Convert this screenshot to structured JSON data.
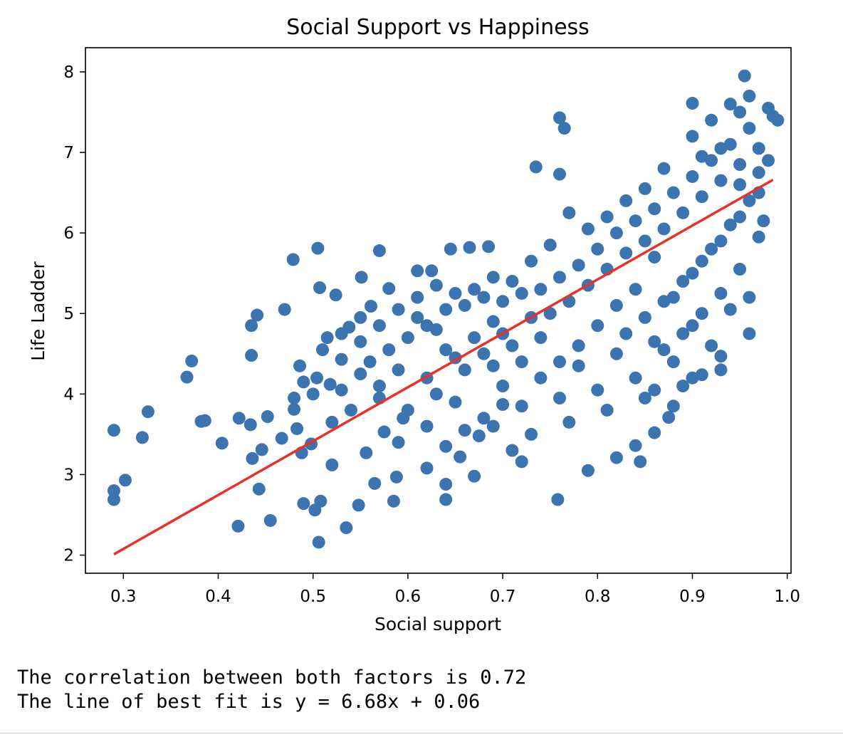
{
  "chart_data": {
    "type": "scatter",
    "title": "Social Support vs Happiness",
    "xlabel": "Social support",
    "ylabel": "Life Ladder",
    "xlim": [
      0.26,
      1.004
    ],
    "ylim": [
      1.775,
      8.3
    ],
    "x_ticks": [
      0.3,
      0.4,
      0.5,
      0.6,
      0.7,
      0.8,
      0.9,
      1.0
    ],
    "x_tick_labels": [
      "0.3",
      "0.4",
      "0.5",
      "0.6",
      "0.7",
      "0.8",
      "0.9",
      "1.0"
    ],
    "y_ticks": [
      2,
      3,
      4,
      5,
      6,
      7,
      8
    ],
    "y_tick_labels": [
      "2",
      "3",
      "4",
      "5",
      "6",
      "7",
      "8"
    ],
    "grid": false,
    "colors": {
      "points": "#3b74ae",
      "fit_line": "#e8312a",
      "axes": "#000000"
    },
    "series": [
      {
        "kind": "points",
        "points": [
          [
            0.29,
            3.55
          ],
          [
            0.29,
            2.8
          ],
          [
            0.29,
            2.69
          ],
          [
            0.302,
            2.93
          ],
          [
            0.32,
            3.46
          ],
          [
            0.326,
            3.78
          ],
          [
            0.367,
            4.21
          ],
          [
            0.372,
            4.41
          ],
          [
            0.382,
            3.66
          ],
          [
            0.386,
            3.67
          ],
          [
            0.404,
            3.39
          ],
          [
            0.421,
            2.36
          ],
          [
            0.422,
            3.7
          ],
          [
            0.434,
            3.62
          ],
          [
            0.435,
            4.85
          ],
          [
            0.435,
            4.48
          ],
          [
            0.436,
            3.2
          ],
          [
            0.441,
            4.98
          ],
          [
            0.443,
            2.82
          ],
          [
            0.446,
            3.31
          ],
          [
            0.452,
            3.72
          ],
          [
            0.455,
            2.43
          ],
          [
            0.467,
            3.45
          ],
          [
            0.47,
            5.05
          ],
          [
            0.479,
            5.67
          ],
          [
            0.48,
            3.81
          ],
          [
            0.483,
            3.57
          ],
          [
            0.486,
            4.35
          ],
          [
            0.488,
            3.27
          ],
          [
            0.49,
            2.64
          ],
          [
            0.498,
            3.38
          ],
          [
            0.502,
            2.56
          ],
          [
            0.504,
            4.2
          ],
          [
            0.505,
            5.81
          ],
          [
            0.506,
            2.16
          ],
          [
            0.507,
            5.32
          ],
          [
            0.508,
            2.67
          ],
          [
            0.515,
            4.7
          ],
          [
            0.518,
            4.12
          ],
          [
            0.52,
            3.12
          ],
          [
            0.524,
            5.23
          ],
          [
            0.53,
            4.43
          ],
          [
            0.535,
            2.34
          ],
          [
            0.538,
            4.83
          ],
          [
            0.548,
            2.62
          ],
          [
            0.551,
            5.45
          ],
          [
            0.556,
            3.27
          ],
          [
            0.561,
            5.09
          ],
          [
            0.565,
            2.89
          ],
          [
            0.57,
            5.78
          ],
          [
            0.575,
            3.53
          ],
          [
            0.58,
            5.31
          ],
          [
            0.585,
            2.67
          ],
          [
            0.588,
            2.97
          ],
          [
            0.595,
            3.7
          ],
          [
            0.61,
            5.53
          ],
          [
            0.62,
            3.08
          ],
          [
            0.625,
            5.53
          ],
          [
            0.64,
            3.35
          ],
          [
            0.64,
            2.88
          ],
          [
            0.64,
            2.69
          ],
          [
            0.645,
            5.8
          ],
          [
            0.655,
            3.22
          ],
          [
            0.665,
            5.82
          ],
          [
            0.67,
            2.98
          ],
          [
            0.675,
            3.48
          ],
          [
            0.685,
            5.83
          ],
          [
            0.69,
            4.35
          ],
          [
            0.7,
            3.87
          ],
          [
            0.71,
            3.3
          ],
          [
            0.72,
            3.16
          ],
          [
            0.735,
            6.82
          ],
          [
            0.76,
            7.43
          ],
          [
            0.765,
            7.3
          ],
          [
            0.76,
            6.73
          ],
          [
            0.758,
            2.69
          ],
          [
            0.79,
            3.05
          ],
          [
            0.82,
            3.21
          ],
          [
            0.84,
            3.36
          ],
          [
            0.845,
            3.16
          ],
          [
            0.86,
            3.52
          ],
          [
            0.875,
            3.71
          ],
          [
            0.91,
            4.24
          ],
          [
            0.9,
            7.61
          ],
          [
            0.955,
            7.95
          ],
          [
            0.95,
            7.5
          ],
          [
            0.975,
            6.15
          ],
          [
            0.985,
            7.45
          ],
          [
            0.96,
            4.75
          ],
          [
            0.93,
            4.47
          ],
          [
            0.55,
            4.65
          ],
          [
            0.56,
            4.4
          ],
          [
            0.57,
            4.1
          ],
          [
            0.58,
            4.55
          ],
          [
            0.59,
            4.3
          ],
          [
            0.6,
            4.7
          ],
          [
            0.61,
            4.95
          ],
          [
            0.62,
            4.2
          ],
          [
            0.63,
            4.8
          ],
          [
            0.64,
            5.05
          ],
          [
            0.65,
            4.45
          ],
          [
            0.66,
            5.1
          ],
          [
            0.67,
            4.7
          ],
          [
            0.68,
            5.2
          ],
          [
            0.69,
            4.9
          ],
          [
            0.7,
            5.15
          ],
          [
            0.71,
            4.6
          ],
          [
            0.72,
            5.25
          ],
          [
            0.73,
            4.95
          ],
          [
            0.74,
            5.3
          ],
          [
            0.75,
            5.0
          ],
          [
            0.76,
            5.45
          ],
          [
            0.77,
            5.15
          ],
          [
            0.78,
            5.6
          ],
          [
            0.79,
            5.35
          ],
          [
            0.8,
            5.8
          ],
          [
            0.81,
            5.55
          ],
          [
            0.82,
            6.0
          ],
          [
            0.83,
            5.75
          ],
          [
            0.84,
            6.15
          ],
          [
            0.85,
            5.9
          ],
          [
            0.86,
            6.3
          ],
          [
            0.87,
            6.05
          ],
          [
            0.88,
            6.5
          ],
          [
            0.89,
            6.25
          ],
          [
            0.9,
            6.7
          ],
          [
            0.91,
            6.45
          ],
          [
            0.92,
            6.9
          ],
          [
            0.93,
            6.65
          ],
          [
            0.94,
            7.1
          ],
          [
            0.95,
            6.85
          ],
          [
            0.96,
            7.3
          ],
          [
            0.97,
            7.05
          ],
          [
            0.98,
            7.55
          ],
          [
            0.6,
            3.8
          ],
          [
            0.62,
            3.6
          ],
          [
            0.65,
            3.9
          ],
          [
            0.68,
            3.7
          ],
          [
            0.7,
            4.1
          ],
          [
            0.72,
            3.85
          ],
          [
            0.74,
            4.2
          ],
          [
            0.76,
            3.95
          ],
          [
            0.78,
            4.35
          ],
          [
            0.8,
            4.05
          ],
          [
            0.82,
            4.5
          ],
          [
            0.84,
            4.2
          ],
          [
            0.86,
            4.65
          ],
          [
            0.88,
            4.4
          ],
          [
            0.9,
            4.85
          ],
          [
            0.92,
            4.6
          ],
          [
            0.94,
            5.05
          ],
          [
            0.96,
            5.2
          ],
          [
            0.52,
            3.65
          ],
          [
            0.53,
            4.05
          ],
          [
            0.54,
            3.8
          ],
          [
            0.55,
            4.25
          ],
          [
            0.57,
            3.95
          ],
          [
            0.59,
            3.4
          ],
          [
            0.63,
            4.0
          ],
          [
            0.66,
            3.55
          ],
          [
            0.69,
            3.6
          ],
          [
            0.73,
            3.5
          ],
          [
            0.77,
            3.65
          ],
          [
            0.81,
            3.8
          ],
          [
            0.85,
            3.95
          ],
          [
            0.89,
            4.1
          ],
          [
            0.93,
            4.3
          ],
          [
            0.88,
            5.2
          ],
          [
            0.9,
            5.5
          ],
          [
            0.92,
            5.8
          ],
          [
            0.94,
            6.1
          ],
          [
            0.96,
            6.4
          ],
          [
            0.98,
            6.9
          ],
          [
            0.86,
            5.7
          ],
          [
            0.84,
            5.3
          ],
          [
            0.82,
            5.1
          ],
          [
            0.8,
            4.85
          ],
          [
            0.78,
            4.6
          ],
          [
            0.76,
            4.4
          ],
          [
            0.74,
            4.7
          ],
          [
            0.72,
            4.4
          ],
          [
            0.7,
            4.75
          ],
          [
            0.68,
            4.5
          ],
          [
            0.66,
            4.3
          ],
          [
            0.64,
            4.55
          ],
          [
            0.62,
            4.85
          ],
          [
            0.9,
            7.2
          ],
          [
            0.92,
            7.4
          ],
          [
            0.94,
            7.6
          ],
          [
            0.96,
            7.7
          ],
          [
            0.93,
            7.05
          ],
          [
            0.91,
            6.95
          ],
          [
            0.95,
            6.6
          ],
          [
            0.97,
            6.75
          ],
          [
            0.87,
            6.8
          ],
          [
            0.85,
            6.55
          ],
          [
            0.83,
            6.4
          ],
          [
            0.81,
            6.2
          ],
          [
            0.79,
            6.05
          ],
          [
            0.77,
            6.25
          ],
          [
            0.75,
            5.85
          ],
          [
            0.73,
            5.65
          ],
          [
            0.71,
            5.4
          ],
          [
            0.69,
            5.45
          ],
          [
            0.67,
            5.3
          ],
          [
            0.65,
            5.25
          ],
          [
            0.63,
            5.35
          ],
          [
            0.61,
            5.2
          ],
          [
            0.59,
            5.05
          ],
          [
            0.57,
            4.85
          ],
          [
            0.55,
            4.95
          ],
          [
            0.53,
            4.75
          ],
          [
            0.51,
            4.55
          ],
          [
            0.5,
            4.0
          ],
          [
            0.49,
            4.15
          ],
          [
            0.48,
            3.95
          ],
          [
            0.86,
            4.05
          ],
          [
            0.88,
            3.85
          ],
          [
            0.9,
            4.2
          ],
          [
            0.87,
            4.55
          ],
          [
            0.89,
            4.75
          ],
          [
            0.91,
            5.0
          ],
          [
            0.93,
            5.25
          ],
          [
            0.95,
            5.55
          ],
          [
            0.97,
            5.95
          ],
          [
            0.99,
            7.4
          ],
          [
            0.83,
            4.75
          ],
          [
            0.85,
            4.95
          ],
          [
            0.87,
            5.15
          ],
          [
            0.89,
            5.4
          ],
          [
            0.91,
            5.65
          ],
          [
            0.93,
            5.9
          ],
          [
            0.95,
            6.2
          ],
          [
            0.97,
            6.5
          ]
        ]
      },
      {
        "kind": "fit_line",
        "x": [
          0.29,
          0.985
        ],
        "y": [
          2.01,
          6.66
        ]
      }
    ]
  },
  "output_lines": [
    "The correlation between both factors is 0.72",
    "The line of best fit is y = 6.68x + 0.06"
  ]
}
